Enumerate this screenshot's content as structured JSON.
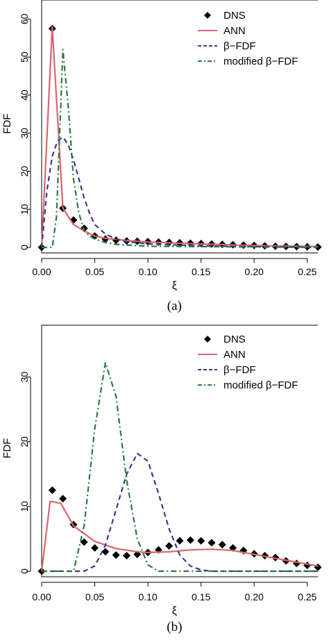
{
  "chart_data": [
    {
      "type": "line",
      "caption": "(a)",
      "xlabel": "ξ",
      "ylabel": "FDF",
      "xlim": [
        0,
        0.26
      ],
      "ylim": [
        0,
        65
      ],
      "xticks": [
        "0.00",
        "0.05",
        "0.10",
        "0.15",
        "0.20",
        "0.25"
      ],
      "xtick_values": [
        0,
        0.05,
        0.1,
        0.15,
        0.2,
        0.25
      ],
      "yticks": [
        "0",
        "10",
        "20",
        "30",
        "40",
        "50",
        "60"
      ],
      "ytick_values": [
        0,
        10,
        20,
        30,
        40,
        50,
        60
      ],
      "grid": false,
      "legend_position": "top-right",
      "series": [
        {
          "name": "DNS",
          "style": "points",
          "color": "#000000",
          "x": [
            0.0,
            0.01,
            0.02,
            0.03,
            0.04,
            0.05,
            0.06,
            0.07,
            0.08,
            0.09,
            0.1,
            0.11,
            0.12,
            0.13,
            0.14,
            0.15,
            0.16,
            0.17,
            0.18,
            0.19,
            0.2,
            0.21,
            0.22,
            0.23,
            0.24,
            0.25,
            0.26
          ],
          "y": [
            0.0,
            57.5,
            10.3,
            7.2,
            5.0,
            3.0,
            2.2,
            1.9,
            1.7,
            1.6,
            1.5,
            1.4,
            1.3,
            1.2,
            1.1,
            1.0,
            0.9,
            0.8,
            0.7,
            0.6,
            0.5,
            0.4,
            0.3,
            0.25,
            0.2,
            0.15,
            0.1
          ]
        },
        {
          "name": "ANN",
          "style": "solid",
          "color": "#d9646e",
          "x": [
            0.0,
            0.01,
            0.02,
            0.03,
            0.04,
            0.05,
            0.06,
            0.08,
            0.1,
            0.15,
            0.2,
            0.26
          ],
          "y": [
            0.0,
            58.0,
            10.3,
            6.0,
            4.3,
            3.0,
            2.4,
            1.8,
            1.4,
            0.9,
            0.5,
            0.2
          ]
        },
        {
          "name": "β−FDF",
          "style": "dashed",
          "color": "#3a3a8c",
          "x": [
            0.0,
            0.005,
            0.01,
            0.015,
            0.02,
            0.025,
            0.03,
            0.035,
            0.04,
            0.045,
            0.05,
            0.06,
            0.07,
            0.08,
            0.1,
            0.15,
            0.2,
            0.26
          ],
          "y": [
            0.0,
            15.0,
            24.0,
            28.0,
            29.0,
            27.0,
            23.0,
            18.0,
            13.0,
            9.0,
            6.0,
            3.5,
            2.2,
            1.5,
            0.9,
            0.4,
            0.2,
            0.1
          ]
        },
        {
          "name": "modified β−FDF",
          "style": "dashdot",
          "color": "#2a7a3a",
          "x": [
            0.0,
            0.01,
            0.014,
            0.02,
            0.025,
            0.03,
            0.035,
            0.04,
            0.045,
            0.05,
            0.06,
            0.07,
            0.1,
            0.26
          ],
          "y": [
            0.0,
            0.0,
            8.0,
            52.0,
            37.0,
            18.0,
            9.0,
            4.5,
            3.0,
            2.2,
            1.3,
            0.8,
            0.3,
            0.0
          ]
        }
      ]
    },
    {
      "type": "line",
      "caption": "(b)",
      "xlabel": "ξ",
      "ylabel": "FDF",
      "xlim": [
        0,
        0.26
      ],
      "ylim": [
        0,
        38
      ],
      "xticks": [
        "0.00",
        "0.05",
        "0.10",
        "0.15",
        "0.20",
        "0.25"
      ],
      "xtick_values": [
        0,
        0.05,
        0.1,
        0.15,
        0.2,
        0.25
      ],
      "yticks": [
        "0",
        "10",
        "20",
        "30"
      ],
      "ytick_values": [
        0,
        10,
        20,
        30
      ],
      "grid": false,
      "legend_position": "top-right",
      "series": [
        {
          "name": "DNS",
          "style": "points",
          "color": "#000000",
          "x": [
            0.0,
            0.01,
            0.02,
            0.03,
            0.04,
            0.05,
            0.06,
            0.07,
            0.08,
            0.09,
            0.1,
            0.11,
            0.12,
            0.13,
            0.14,
            0.15,
            0.16,
            0.17,
            0.18,
            0.19,
            0.2,
            0.21,
            0.22,
            0.23,
            0.24,
            0.25,
            0.26
          ],
          "y": [
            0.0,
            12.5,
            11.2,
            7.2,
            4.5,
            3.6,
            3.0,
            2.5,
            2.4,
            2.6,
            2.9,
            3.3,
            3.9,
            4.7,
            4.8,
            4.7,
            4.4,
            4.1,
            3.6,
            3.2,
            2.7,
            2.4,
            2.1,
            1.6,
            1.2,
            0.9,
            0.6
          ]
        },
        {
          "name": "ANN",
          "style": "solid",
          "color": "#d9646e",
          "x": [
            0.0,
            0.008,
            0.018,
            0.03,
            0.05,
            0.07,
            0.09,
            0.1,
            0.12,
            0.14,
            0.16,
            0.18,
            0.2,
            0.22,
            0.24,
            0.26
          ],
          "y": [
            0.0,
            10.8,
            10.5,
            7.0,
            4.6,
            3.5,
            3.0,
            2.9,
            3.0,
            3.3,
            3.4,
            3.2,
            2.6,
            2.0,
            1.4,
            0.8
          ]
        },
        {
          "name": "β−FDF",
          "style": "dashed",
          "color": "#3a3a8c",
          "x": [
            0.0,
            0.04,
            0.05,
            0.06,
            0.07,
            0.08,
            0.09,
            0.1,
            0.11,
            0.12,
            0.13,
            0.14,
            0.15,
            0.16,
            0.26
          ],
          "y": [
            0.0,
            0.0,
            0.8,
            4.0,
            9.5,
            15.0,
            18.2,
            17.0,
            12.0,
            6.5,
            2.5,
            0.8,
            0.2,
            0.0,
            0.0
          ]
        },
        {
          "name": "modified β−FDF",
          "style": "dashdot",
          "color": "#2a7a3a",
          "x": [
            0.0,
            0.03,
            0.04,
            0.05,
            0.06,
            0.07,
            0.08,
            0.09,
            0.1,
            0.11,
            0.26
          ],
          "y": [
            0.0,
            0.0,
            7.0,
            22.0,
            32.2,
            27.0,
            14.0,
            5.0,
            1.0,
            0.0,
            0.0
          ]
        }
      ]
    }
  ]
}
